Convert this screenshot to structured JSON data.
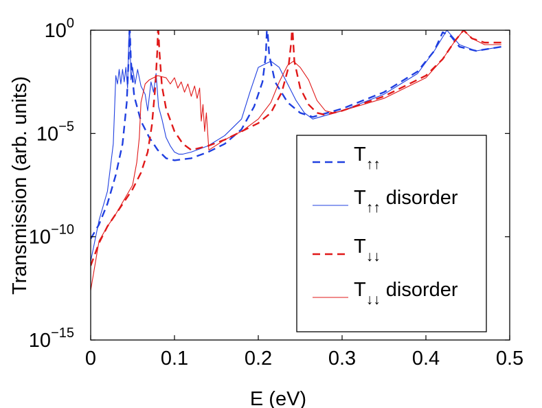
{
  "chart_data": {
    "type": "line",
    "title": "",
    "xlabel": "E (eV)",
    "ylabel": "Transmission (arb. units)",
    "xlim": [
      0,
      0.5
    ],
    "ylim_log10": [
      -15,
      0
    ],
    "yscale": "log",
    "grid": false,
    "legend_position": "bottom-right",
    "x_ticks": [
      {
        "value": 0,
        "label": "0"
      },
      {
        "value": 0.1,
        "label": "0.1"
      },
      {
        "value": 0.2,
        "label": "0.2"
      },
      {
        "value": 0.3,
        "label": "0.3"
      },
      {
        "value": 0.4,
        "label": "0.4"
      },
      {
        "value": 0.5,
        "label": "0.5"
      }
    ],
    "y_ticks": [
      {
        "exp": 0,
        "base": "10",
        "sup": "0"
      },
      {
        "exp": -5,
        "base": "10",
        "sup": "−5"
      },
      {
        "exp": -10,
        "base": "10",
        "sup": "−10"
      },
      {
        "exp": -15,
        "base": "10",
        "sup": "−15"
      }
    ],
    "series": [
      {
        "name": "T↑↑",
        "label_main": "T",
        "label_sub": "↑↑",
        "label_suffix": "",
        "color": "#1f3fe0",
        "style": "dashed",
        "log10_y": [
          [
            0,
            -10.1
          ],
          [
            0.01,
            -9.4
          ],
          [
            0.02,
            -8.4
          ],
          [
            0.03,
            -7.0
          ],
          [
            0.038,
            -5.5
          ],
          [
            0.043,
            -3.5
          ],
          [
            0.0455,
            -1.2
          ],
          [
            0.0465,
            0.3
          ],
          [
            0.048,
            -1.5
          ],
          [
            0.052,
            -3.2
          ],
          [
            0.06,
            -4.4
          ],
          [
            0.07,
            -5.2
          ],
          [
            0.08,
            -5.8
          ],
          [
            0.09,
            -6.2
          ],
          [
            0.1,
            -6.3
          ],
          [
            0.12,
            -6.2
          ],
          [
            0.14,
            -5.9
          ],
          [
            0.16,
            -5.5
          ],
          [
            0.18,
            -4.8
          ],
          [
            0.195,
            -3.7
          ],
          [
            0.205,
            -2.5
          ],
          [
            0.209,
            -1.2
          ],
          [
            0.2105,
            0.3
          ],
          [
            0.213,
            -1.2
          ],
          [
            0.22,
            -2.5
          ],
          [
            0.235,
            -3.5
          ],
          [
            0.25,
            -4.0
          ],
          [
            0.265,
            -4.2
          ],
          [
            0.3,
            -3.8
          ],
          [
            0.35,
            -3.0
          ],
          [
            0.39,
            -2.0
          ],
          [
            0.41,
            -1.0
          ],
          [
            0.42,
            -0.1
          ],
          [
            0.43,
            -0.3
          ],
          [
            0.44,
            -0.8
          ],
          [
            0.46,
            -1.0
          ],
          [
            0.49,
            -0.8
          ]
        ]
      },
      {
        "name": "T↑↑ disorder",
        "label_main": "T",
        "label_sub": "↑↑",
        "label_suffix": " disorder",
        "color": "#1f3fe0",
        "style": "solid",
        "log10_y": [
          [
            0,
            -11.2
          ],
          [
            0.01,
            -9.2
          ],
          [
            0.02,
            -7.8
          ],
          [
            0.027,
            -5.5
          ],
          [
            0.03,
            -2.2
          ],
          [
            0.032,
            -2.6
          ],
          [
            0.034,
            -1.9
          ],
          [
            0.036,
            -2.6
          ],
          [
            0.038,
            -1.9
          ],
          [
            0.04,
            -2.5
          ],
          [
            0.042,
            -1.8
          ],
          [
            0.044,
            -2.8
          ],
          [
            0.0455,
            -0.5
          ],
          [
            0.0465,
            0.3
          ],
          [
            0.048,
            -2.4
          ],
          [
            0.05,
            -1.8
          ],
          [
            0.053,
            -2.6
          ],
          [
            0.056,
            -1.9
          ],
          [
            0.06,
            -2.7
          ],
          [
            0.065,
            -3.1
          ],
          [
            0.068,
            -3.9
          ],
          [
            0.072,
            -2.5
          ],
          [
            0.075,
            -3.0
          ],
          [
            0.078,
            -2.1
          ],
          [
            0.081,
            -3.7
          ],
          [
            0.085,
            -4.3
          ],
          [
            0.09,
            -5.2
          ],
          [
            0.095,
            -5.6
          ],
          [
            0.1,
            -5.9
          ],
          [
            0.105,
            -6.0
          ],
          [
            0.11,
            -6.0
          ],
          [
            0.12,
            -5.9
          ],
          [
            0.14,
            -5.6
          ],
          [
            0.16,
            -5.1
          ],
          [
            0.18,
            -4.3
          ],
          [
            0.19,
            -3.0
          ],
          [
            0.2,
            -1.8
          ],
          [
            0.215,
            -1.5
          ],
          [
            0.225,
            -1.8
          ],
          [
            0.235,
            -2.6
          ],
          [
            0.245,
            -3.4
          ],
          [
            0.255,
            -4.0
          ],
          [
            0.265,
            -4.3
          ],
          [
            0.3,
            -3.9
          ],
          [
            0.35,
            -3.1
          ],
          [
            0.39,
            -2.1
          ],
          [
            0.41,
            -1.0
          ],
          [
            0.425,
            0.0
          ],
          [
            0.44,
            -0.7
          ],
          [
            0.46,
            -1.0
          ],
          [
            0.49,
            -0.8
          ]
        ]
      },
      {
        "name": "T↓↓",
        "label_main": "T",
        "label_sub": "↓↓",
        "label_suffix": "",
        "color": "#e01818",
        "style": "dashed",
        "log10_y": [
          [
            0,
            -11.4
          ],
          [
            0.01,
            -10.3
          ],
          [
            0.02,
            -9.5
          ],
          [
            0.03,
            -8.9
          ],
          [
            0.04,
            -8.3
          ],
          [
            0.05,
            -7.7
          ],
          [
            0.06,
            -6.9
          ],
          [
            0.068,
            -5.9
          ],
          [
            0.073,
            -4.6
          ],
          [
            0.077,
            -2.8
          ],
          [
            0.0795,
            -1.0
          ],
          [
            0.0805,
            0.3
          ],
          [
            0.082,
            -1.0
          ],
          [
            0.085,
            -2.7
          ],
          [
            0.09,
            -3.8
          ],
          [
            0.1,
            -4.9
          ],
          [
            0.11,
            -5.5
          ],
          [
            0.12,
            -5.8
          ],
          [
            0.14,
            -5.6
          ],
          [
            0.16,
            -5.3
          ],
          [
            0.18,
            -4.9
          ],
          [
            0.2,
            -4.5
          ],
          [
            0.215,
            -4.0
          ],
          [
            0.228,
            -3.0
          ],
          [
            0.236,
            -1.8
          ],
          [
            0.2395,
            -0.5
          ],
          [
            0.2405,
            0.3
          ],
          [
            0.243,
            -1.5
          ],
          [
            0.25,
            -2.8
          ],
          [
            0.26,
            -3.6
          ],
          [
            0.27,
            -4.0
          ],
          [
            0.28,
            -4.1
          ],
          [
            0.3,
            -3.9
          ],
          [
            0.35,
            -3.2
          ],
          [
            0.4,
            -2.2
          ],
          [
            0.42,
            -1.4
          ],
          [
            0.435,
            -0.5
          ],
          [
            0.445,
            0.0
          ],
          [
            0.455,
            -0.4
          ],
          [
            0.47,
            -0.6
          ],
          [
            0.49,
            -0.6
          ]
        ]
      },
      {
        "name": "T↓↓ disorder",
        "label_main": "T",
        "label_sub": "↓↓",
        "label_suffix": " disorder",
        "color": "#e01818",
        "style": "solid",
        "log10_y": [
          [
            0,
            -12.6
          ],
          [
            0.01,
            -10.2
          ],
          [
            0.02,
            -9.5
          ],
          [
            0.03,
            -8.9
          ],
          [
            0.04,
            -8.2
          ],
          [
            0.05,
            -7.5
          ],
          [
            0.055,
            -6.4
          ],
          [
            0.058,
            -5.2
          ],
          [
            0.06,
            -3.5
          ],
          [
            0.065,
            -2.6
          ],
          [
            0.07,
            -2.4
          ],
          [
            0.08,
            -2.2
          ],
          [
            0.09,
            -2.3
          ],
          [
            0.095,
            -2.6
          ],
          [
            0.1,
            -2.3
          ],
          [
            0.104,
            -2.8
          ],
          [
            0.108,
            -2.5
          ],
          [
            0.112,
            -3.0
          ],
          [
            0.116,
            -2.6
          ],
          [
            0.12,
            -3.2
          ],
          [
            0.124,
            -2.7
          ],
          [
            0.127,
            -3.3
          ],
          [
            0.13,
            -2.8
          ],
          [
            0.132,
            -4.4
          ],
          [
            0.134,
            -3.6
          ],
          [
            0.136,
            -4.9
          ],
          [
            0.138,
            -4.0
          ],
          [
            0.14,
            -5.2
          ],
          [
            0.141,
            -5.8
          ],
          [
            0.16,
            -5.3
          ],
          [
            0.18,
            -4.9
          ],
          [
            0.2,
            -4.3
          ],
          [
            0.215,
            -3.5
          ],
          [
            0.225,
            -2.5
          ],
          [
            0.235,
            -1.7
          ],
          [
            0.242,
            -1.5
          ],
          [
            0.25,
            -1.8
          ],
          [
            0.26,
            -2.4
          ],
          [
            0.27,
            -3.4
          ],
          [
            0.28,
            -3.9
          ],
          [
            0.29,
            -4.0
          ],
          [
            0.3,
            -3.9
          ],
          [
            0.35,
            -3.3
          ],
          [
            0.4,
            -2.3
          ],
          [
            0.42,
            -1.4
          ],
          [
            0.435,
            -0.5
          ],
          [
            0.445,
            0.0
          ],
          [
            0.455,
            -0.4
          ],
          [
            0.47,
            -0.7
          ],
          [
            0.49,
            -0.7
          ]
        ]
      }
    ]
  }
}
